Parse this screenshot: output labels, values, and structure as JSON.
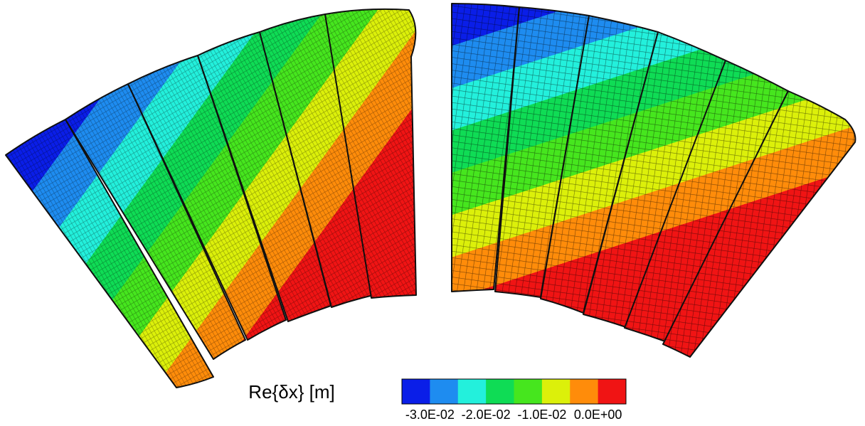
{
  "legend": {
    "title": "Re{δx} [m]",
    "colors": [
      "#0a1ee8",
      "#1e8cf0",
      "#23f0dc",
      "#0fdc55",
      "#46e61e",
      "#dcf00a",
      "#ff8c0a",
      "#f01414"
    ],
    "range": [
      -0.035,
      0.005
    ],
    "ticks": [
      {
        "value": -0.03,
        "label": "-3.0E-02"
      },
      {
        "value": -0.02,
        "label": "-2.0E-02"
      },
      {
        "value": -0.01,
        "label": "-1.0E-02"
      },
      {
        "value": 0,
        "label": "0.0E+00"
      }
    ]
  }
}
